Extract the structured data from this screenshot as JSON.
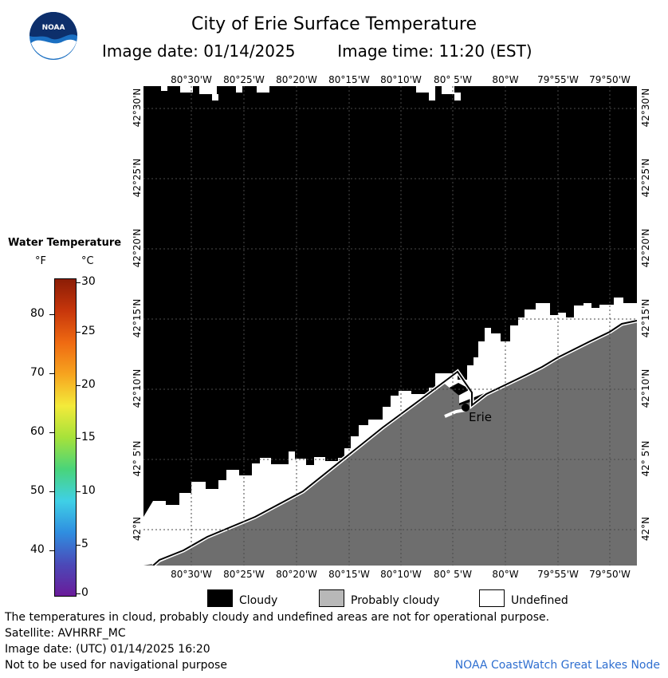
{
  "header": {
    "title": "City of Erie Surface Temperature",
    "image_date": "Image date: 01/14/2025",
    "image_time": "Image time: 11:20 (EST)",
    "logo_text": "NOAA"
  },
  "map": {
    "lon_labels": [
      "80°30'W",
      "80°25'W",
      "80°20'W",
      "80°15'W",
      "80°10'W",
      "80° 5'W",
      "80°W",
      "79°55'W",
      "79°50'W"
    ],
    "lat_labels": [
      "42°30'N",
      "42°25'N",
      "42°20'N",
      "42°15'N",
      "42°10'N",
      "42° 5'N",
      "42°N"
    ],
    "city_label": "Erie",
    "colors": {
      "cloudy": "#000000",
      "probably_cloudy": "#6e6e6e",
      "undefined": "#ffffff",
      "gridline": "#4a4a4a"
    }
  },
  "legend": {
    "title": "Water Temperature",
    "unit_f": "°F",
    "unit_c": "°C",
    "ticks_f": [
      "80",
      "70",
      "60",
      "50",
      "40"
    ],
    "ticks_c": [
      "30",
      "25",
      "20",
      "15",
      "10",
      "5",
      "0"
    ],
    "colorbar": [
      "#6a1b9a",
      "#4b4ab8",
      "#2f8ee0",
      "#3fd0e6",
      "#49d47a",
      "#a6e23a",
      "#f3ea3a",
      "#f7a41f",
      "#ef6a12",
      "#c7360b",
      "#8b1d06"
    ]
  },
  "key": {
    "cloudy": "Cloudy",
    "probably_cloudy": "Probably cloudy",
    "undefined": "Undefined"
  },
  "footer": {
    "note": "The temperatures in cloud, probably cloudy and undefined areas are not for operational purpose.",
    "satellite": "Satellite: AVHRRF_MC",
    "utc_date": "Image date: (UTC) 01/14/2025  16:20",
    "nav_warning": "Not to be used for navigational purpose",
    "node": "NOAA CoastWatch Great Lakes Node"
  }
}
